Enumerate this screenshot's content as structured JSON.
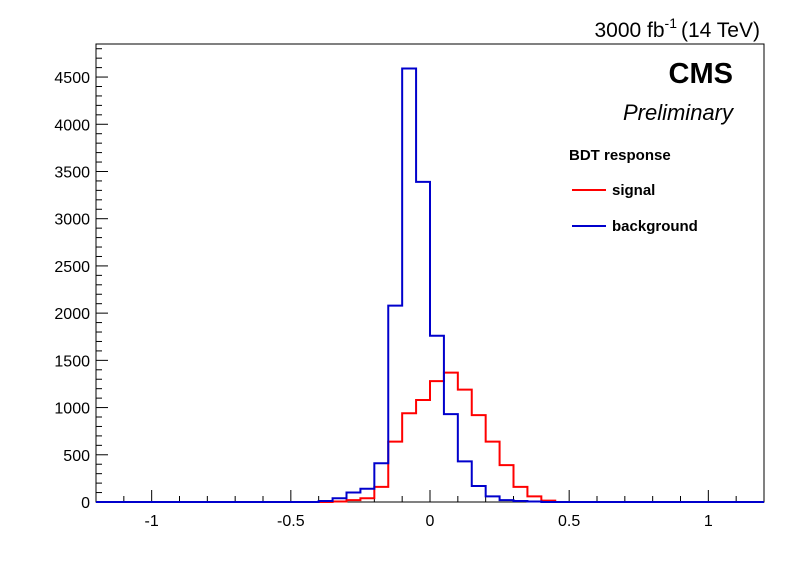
{
  "header": {
    "lumi_value": "3000 fb",
    "lumi_exponent": "-1",
    "energy": "(14 TeV)"
  },
  "labels": {
    "experiment": "CMS",
    "status": "Preliminary"
  },
  "legend": {
    "title": "BDT response",
    "entries": [
      {
        "label": "signal",
        "color": "#ff0000"
      },
      {
        "label": "background",
        "color": "#0000cc"
      }
    ]
  },
  "chart_data": {
    "type": "line",
    "style": "step-histogram",
    "title": "",
    "xlabel": "",
    "ylabel": "",
    "xlim": [
      -1.2,
      1.2
    ],
    "ylim": [
      0,
      4850
    ],
    "xticks": [
      -1,
      -0.5,
      0,
      0.5,
      1
    ],
    "xtick_labels": [
      "-1",
      "-0.5",
      "0",
      "0.5",
      "1"
    ],
    "yticks": [
      0,
      500,
      1000,
      1500,
      2000,
      2500,
      3000,
      3500,
      4000,
      4500
    ],
    "ytick_labels": [
      "0",
      "500",
      "1000",
      "1500",
      "2000",
      "2500",
      "3000",
      "3500",
      "4000",
      "4500"
    ],
    "grid": false,
    "legend_position": "top-right",
    "bin_edges": [
      -1.2,
      -1.15,
      -1.1,
      -1.05,
      -1.0,
      -0.95,
      -0.9,
      -0.85,
      -0.8,
      -0.75,
      -0.7,
      -0.65,
      -0.6,
      -0.55,
      -0.5,
      -0.45,
      -0.4,
      -0.35,
      -0.3,
      -0.25,
      -0.2,
      -0.15,
      -0.1,
      -0.05,
      0.0,
      0.05,
      0.1,
      0.15,
      0.2,
      0.25,
      0.3,
      0.35,
      0.4,
      0.45,
      0.5,
      0.55,
      0.6,
      0.65,
      0.7,
      0.75,
      0.8,
      0.85,
      0.9,
      0.95,
      1.0,
      1.05,
      1.1,
      1.15,
      1.2
    ],
    "series": [
      {
        "name": "signal",
        "color": "#ff0000",
        "values": [
          0,
          0,
          0,
          0,
          0,
          0,
          0,
          0,
          0,
          0,
          0,
          0,
          0,
          0,
          0,
          0,
          0,
          5,
          20,
          40,
          160,
          640,
          940,
          1080,
          1280,
          1370,
          1190,
          920,
          640,
          390,
          160,
          60,
          15,
          0,
          0,
          0,
          0,
          0,
          0,
          0,
          0,
          0,
          0,
          0,
          0,
          0,
          0,
          0
        ]
      },
      {
        "name": "background",
        "color": "#0000cc",
        "values": [
          0,
          0,
          0,
          0,
          0,
          0,
          0,
          0,
          0,
          0,
          0,
          0,
          0,
          0,
          0,
          0,
          10,
          40,
          100,
          140,
          410,
          2080,
          4590,
          3390,
          1760,
          930,
          430,
          170,
          60,
          20,
          10,
          5,
          0,
          0,
          0,
          0,
          0,
          0,
          0,
          0,
          0,
          0,
          0,
          0,
          0,
          0,
          0,
          0
        ]
      }
    ]
  }
}
